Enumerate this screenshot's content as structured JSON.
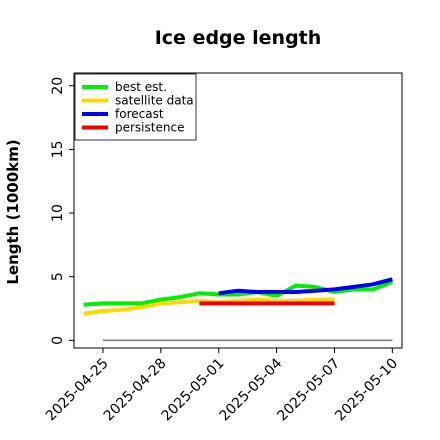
{
  "chart_data": {
    "type": "line",
    "title": "Ice edge length",
    "xlabel": "",
    "ylabel": "Length (1000km)",
    "ylim": [
      -0.6,
      21
    ],
    "xlim": [
      "2025-04-23T12:00",
      "2025-05-10T12:00"
    ],
    "yticks": [
      0,
      5,
      10,
      15,
      20
    ],
    "xticks": [
      "2025-04-25",
      "2025-04-28",
      "2025-05-01",
      "2025-05-04",
      "2025-05-07",
      "2025-05-10"
    ],
    "highlighted_xtick": "2025-05-01",
    "highlight_color": "#228b22",
    "grid": false,
    "legend_position": "top-left",
    "reference_line": {
      "y": 0,
      "color": "#808080",
      "x_start": "2025-04-25",
      "x_end": "2025-05-10"
    },
    "series": [
      {
        "name": "best est.",
        "color": "#00ee00",
        "x": [
          "2025-04-24",
          "2025-04-25",
          "2025-04-26",
          "2025-04-27",
          "2025-04-28",
          "2025-04-29",
          "2025-04-30",
          "2025-05-01",
          "2025-05-02",
          "2025-05-03",
          "2025-05-04",
          "2025-05-05",
          "2025-05-06",
          "2025-05-07",
          "2025-05-08",
          "2025-05-09",
          "2025-05-10"
        ],
        "y": [
          2.8,
          2.9,
          2.9,
          2.9,
          3.2,
          3.4,
          3.7,
          3.6,
          3.6,
          3.8,
          3.5,
          4.3,
          4.2,
          3.8,
          4.0,
          4.0,
          4.6
        ]
      },
      {
        "name": "satellite data",
        "color": "#ffd700",
        "x": [
          "2025-04-24",
          "2025-04-25",
          "2025-04-26",
          "2025-04-27",
          "2025-04-28",
          "2025-04-29",
          "2025-04-30",
          "2025-05-01",
          "2025-05-02",
          "2025-05-03",
          "2025-05-04",
          "2025-05-05",
          "2025-05-06",
          "2025-05-07"
        ],
        "y": [
          2.1,
          2.3,
          2.4,
          2.6,
          2.9,
          3.0,
          3.1,
          3.0,
          3.1,
          3.2,
          3.1,
          3.1,
          3.2,
          3.2
        ]
      },
      {
        "name": "forecast",
        "color": "#0000ee",
        "x": [
          "2025-05-01",
          "2025-05-02",
          "2025-05-03",
          "2025-05-04",
          "2025-05-05",
          "2025-05-06",
          "2025-05-07",
          "2025-05-08",
          "2025-05-09",
          "2025-05-10"
        ],
        "y": [
          3.7,
          3.9,
          3.8,
          3.8,
          3.8,
          3.9,
          4.0,
          4.2,
          4.4,
          4.8
        ]
      },
      {
        "name": "persistence",
        "color": "#ee0000",
        "x": [
          "2025-04-30",
          "2025-05-07"
        ],
        "y": [
          2.9,
          2.9
        ]
      }
    ]
  }
}
